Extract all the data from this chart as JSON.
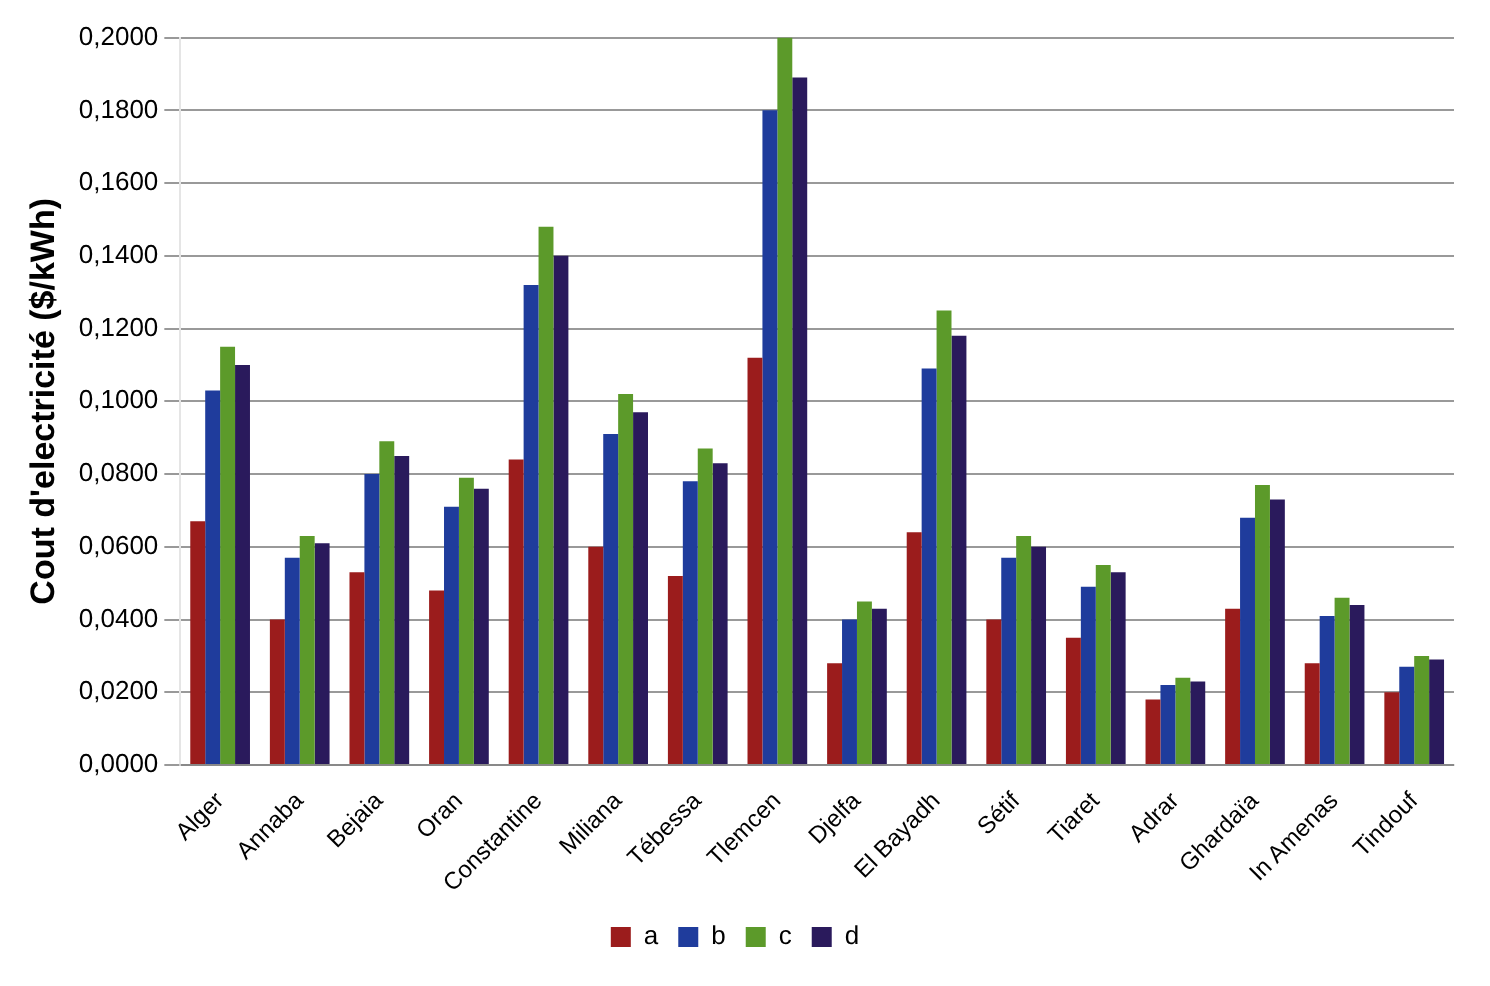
{
  "chart_data": {
    "type": "bar",
    "ylabel": "Cout d'electricité ($/kWh)",
    "categories": [
      "Alger",
      "Annaba",
      "Bejaia",
      "Oran",
      "Constantine",
      "Miliana",
      "Tébessa",
      "Tlemcen",
      "Djelfa",
      "El Bayadh",
      "Sétif",
      "Tiaret",
      "Adrar",
      "Ghardaïa",
      "In Amenas",
      "Tindouf"
    ],
    "series": [
      {
        "name": "a",
        "color": "#9b1c1c",
        "values": [
          0.067,
          0.04,
          0.053,
          0.048,
          0.084,
          0.06,
          0.052,
          0.112,
          0.028,
          0.064,
          0.04,
          0.035,
          0.018,
          0.043,
          0.028,
          0.02
        ]
      },
      {
        "name": "b",
        "color": "#1f3c9c",
        "values": [
          0.103,
          0.057,
          0.08,
          0.071,
          0.132,
          0.091,
          0.078,
          0.18,
          0.04,
          0.109,
          0.057,
          0.049,
          0.022,
          0.068,
          0.041,
          0.027
        ]
      },
      {
        "name": "c",
        "color": "#5c9a2a",
        "values": [
          0.115,
          0.063,
          0.089,
          0.079,
          0.148,
          0.102,
          0.087,
          0.2,
          0.045,
          0.125,
          0.063,
          0.055,
          0.024,
          0.077,
          0.046,
          0.03
        ]
      },
      {
        "name": "d",
        "color": "#2a1a5c",
        "values": [
          0.11,
          0.061,
          0.085,
          0.076,
          0.14,
          0.097,
          0.083,
          0.189,
          0.043,
          0.118,
          0.06,
          0.053,
          0.023,
          0.073,
          0.044,
          0.029
        ]
      }
    ],
    "ylim": [
      0,
      0.2
    ],
    "yticks": [
      {
        "value": 0,
        "label": "0,0000"
      },
      {
        "value": 0.02,
        "label": "0,0200"
      },
      {
        "value": 0.04,
        "label": "0,0400"
      },
      {
        "value": 0.06,
        "label": "0,0600"
      },
      {
        "value": 0.08,
        "label": "0,0800"
      },
      {
        "value": 0.1,
        "label": "0,1000"
      },
      {
        "value": 0.12,
        "label": "0,1200"
      },
      {
        "value": 0.14,
        "label": "0,1400"
      },
      {
        "value": 0.16,
        "label": "0,1600"
      },
      {
        "value": 0.18,
        "label": "0,1800"
      },
      {
        "value": 0.2,
        "label": "0,2000"
      }
    ],
    "grid": "y",
    "legend": "bottom"
  }
}
